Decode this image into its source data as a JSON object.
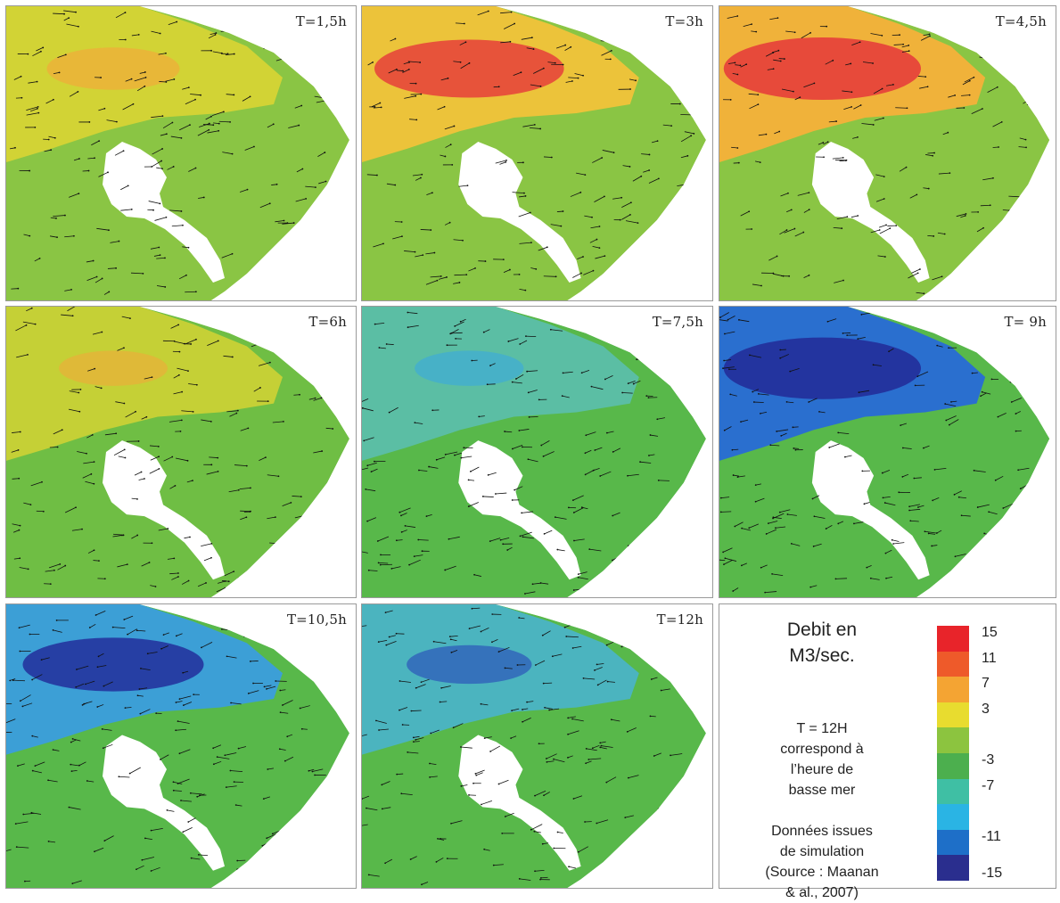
{
  "panels": [
    {
      "label": "T=1,5h",
      "colors": [
        "#e5d731",
        "#f2a93a",
        "#8ac544"
      ],
      "intensity": 0.55,
      "blobs": "pos"
    },
    {
      "label": "T=3h",
      "colors": [
        "#f0c23a",
        "#e6443a",
        "#8ac544"
      ],
      "intensity": 0.9,
      "blobs": "pos"
    },
    {
      "label": "T=4,5h",
      "colors": [
        "#f0b23a",
        "#e6443a",
        "#8ac544"
      ],
      "intensity": 1.0,
      "blobs": "pos"
    },
    {
      "label": "T=6h",
      "colors": [
        "#e5d731",
        "#f2a93a",
        "#6fbe44"
      ],
      "intensity": 0.4,
      "blobs": "pos"
    },
    {
      "label": "T=7,5h",
      "colors": [
        "#5cc0c6",
        "#3aa9e0",
        "#58b84a"
      ],
      "intensity": 0.4,
      "blobs": "neg"
    },
    {
      "label": "T= 9h",
      "colors": [
        "#2a6fcf",
        "#23309c",
        "#58b84a"
      ],
      "intensity": 1.0,
      "blobs": "neg"
    },
    {
      "label": "T=10,5h",
      "colors": [
        "#3a9ee0",
        "#23309c",
        "#58b84a"
      ],
      "intensity": 0.85,
      "blobs": "neg"
    },
    {
      "label": "T=12h",
      "colors": [
        "#48b3e2",
        "#2a4fb8",
        "#58b84a"
      ],
      "intensity": 0.5,
      "blobs": "neg"
    }
  ],
  "legend": {
    "title_line1": "Debit en",
    "title_line2": "M3/sec.",
    "note_line1": "T = 12H",
    "note_line2": "correspond à",
    "note_line3": "l’heure de",
    "note_line4": "basse mer",
    "source_line1": "Données issues",
    "source_line2": "de simulation",
    "source_line3": "(Source : Maanan",
    "source_line4": "& al., 2007)",
    "scale_colors": [
      "#e8242a",
      "#ee5a2a",
      "#f4a433",
      "#e8dc2f",
      "#8cc43f",
      "#4caf4e",
      "#3fbfa4",
      "#2ab4e4",
      "#1e6fc8",
      "#2a2e8e"
    ],
    "ticks": [
      "15",
      "11",
      "7",
      "3",
      "-3",
      "-7",
      "-11",
      "-15"
    ]
  }
}
